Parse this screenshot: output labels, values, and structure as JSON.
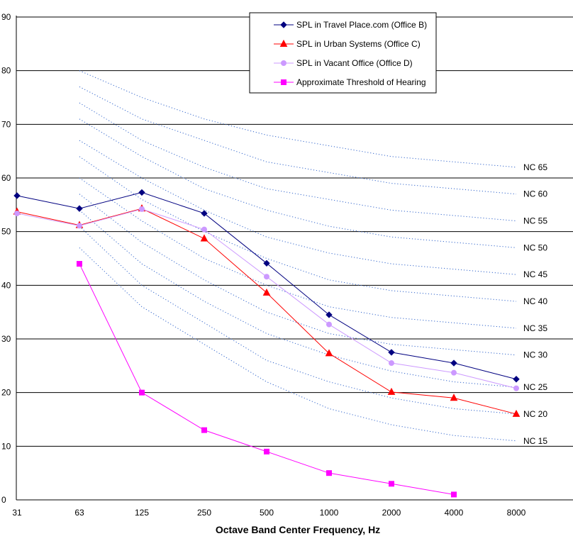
{
  "chart_data": {
    "type": "line",
    "title": "",
    "xlabel": "Octave Band Center Frequency, Hz",
    "ylabel": "",
    "ylim": [
      0,
      90
    ],
    "yticks": [
      0,
      10,
      20,
      30,
      40,
      50,
      60,
      70,
      80,
      90
    ],
    "categories": [
      "31",
      "63",
      "125",
      "250",
      "500",
      "1000",
      "2000",
      "4000",
      "8000"
    ],
    "grid": true,
    "legend": "top-center",
    "series": [
      {
        "name": "SPL in Travel Place.com (Office B)",
        "color": "#000080",
        "marker": "diamond",
        "values": [
          56.7,
          54.3,
          57.3,
          53.4,
          44.1,
          34.5,
          27.5,
          25.5,
          22.5
        ]
      },
      {
        "name": "SPL in Urban Systems (Office C)",
        "color": "#ff0000",
        "marker": "triangle",
        "values": [
          53.7,
          51.2,
          54.3,
          48.7,
          38.6,
          27.3,
          20.1,
          19.0,
          16.0
        ]
      },
      {
        "name": "SPL in Vacant Office (Office D)",
        "color": "#cc99ff",
        "marker": "circle",
        "values": [
          53.4,
          51.1,
          54.2,
          50.4,
          41.6,
          32.7,
          25.5,
          23.7,
          20.8
        ]
      },
      {
        "name": "Approximate Threshold of Hearing",
        "color": "#ff00ff",
        "marker": "square",
        "values": [
          null,
          44.0,
          20.0,
          13.0,
          9.0,
          5.0,
          3.0,
          1.0,
          null
        ]
      }
    ],
    "nc_curves": {
      "color": "#3366cc",
      "curves": [
        {
          "label": "NC 65",
          "values": [
            null,
            80,
            75,
            71,
            68,
            66,
            64,
            63,
            62
          ]
        },
        {
          "label": "NC 60",
          "values": [
            null,
            77,
            71,
            67,
            63,
            61,
            59,
            58,
            57
          ]
        },
        {
          "label": "NC 55",
          "values": [
            null,
            74,
            67,
            62,
            58,
            56,
            54,
            53,
            52
          ]
        },
        {
          "label": "NC 50",
          "values": [
            null,
            71,
            64,
            58,
            54,
            51,
            49,
            48,
            47
          ]
        },
        {
          "label": "NC 45",
          "values": [
            null,
            67,
            60,
            54,
            49,
            46,
            44,
            43,
            42
          ]
        },
        {
          "label": "NC 40",
          "values": [
            null,
            64,
            56,
            50,
            45,
            41,
            39,
            38,
            37
          ]
        },
        {
          "label": "NC 35",
          "values": [
            null,
            60,
            52,
            45,
            40,
            36,
            34,
            33,
            32
          ]
        },
        {
          "label": "NC 30",
          "values": [
            null,
            57,
            48,
            41,
            35,
            31,
            29,
            28,
            27
          ]
        },
        {
          "label": "NC 25",
          "values": [
            null,
            54,
            44,
            37,
            31,
            27,
            24,
            22,
            21
          ]
        },
        {
          "label": "NC 20",
          "values": [
            null,
            51,
            40,
            33,
            26,
            22,
            19,
            17,
            16
          ]
        },
        {
          "label": "NC 15",
          "values": [
            null,
            47,
            36,
            29,
            22,
            17,
            14,
            12,
            11
          ]
        }
      ]
    }
  }
}
